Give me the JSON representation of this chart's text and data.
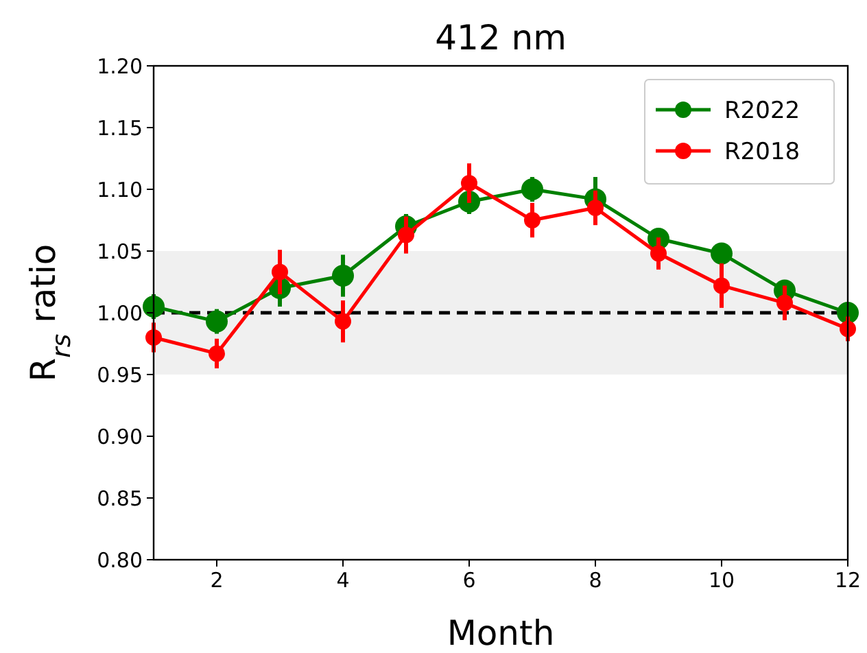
{
  "chart_data": {
    "type": "line",
    "title": "412 nm",
    "xlabel": "Month",
    "ylabel": "R$_{rs}$ ratio",
    "x": [
      1,
      2,
      3,
      4,
      5,
      6,
      7,
      8,
      9,
      10,
      11,
      12
    ],
    "series": [
      {
        "name": "R2022",
        "color": "#008000",
        "values": [
          1.005,
          0.993,
          1.02,
          1.03,
          1.07,
          1.09,
          1.1,
          1.092,
          1.06,
          1.048,
          1.018,
          1.0
        ],
        "errors": [
          0.01,
          0.01,
          0.015,
          0.017,
          0.01,
          0.01,
          0.01,
          0.018,
          0.008,
          0.008,
          0.008,
          0.005
        ]
      },
      {
        "name": "R2018",
        "color": "#ff0000",
        "values": [
          0.98,
          0.967,
          1.033,
          0.993,
          1.063,
          1.105,
          1.075,
          1.085,
          1.048,
          1.022,
          1.008,
          0.987
        ],
        "errors": [
          0.012,
          0.012,
          0.018,
          0.017,
          0.015,
          0.016,
          0.014,
          0.014,
          0.013,
          0.018,
          0.014,
          0.01
        ]
      }
    ],
    "xlim": [
      1,
      12
    ],
    "xticks": [
      2,
      4,
      6,
      8,
      10,
      12
    ],
    "ylim": [
      0.8,
      1.2
    ],
    "yticks": [
      {
        "value": 0.8,
        "label": "0.80"
      },
      {
        "value": 0.85,
        "label": "0.85"
      },
      {
        "value": 0.9,
        "label": "0.90"
      },
      {
        "value": 0.95,
        "label": "0.95"
      },
      {
        "value": 1.0,
        "label": "1.00"
      },
      {
        "value": 1.05,
        "label": "1.05"
      },
      {
        "value": 1.1,
        "label": "1.10"
      },
      {
        "value": 1.15,
        "label": "1.15"
      },
      {
        "value": 1.2,
        "label": "1.20"
      }
    ],
    "ref_lines": [
      {
        "axis": "y",
        "value": 1.0,
        "color": "#000000",
        "line_style": "dashed"
      }
    ],
    "bands": [
      {
        "axis": "y",
        "from": 0.95,
        "to": 1.05,
        "color": "#f0f0f0"
      }
    ],
    "legend": "top right",
    "marker": "circle",
    "line_style": "solid",
    "grid": false
  }
}
